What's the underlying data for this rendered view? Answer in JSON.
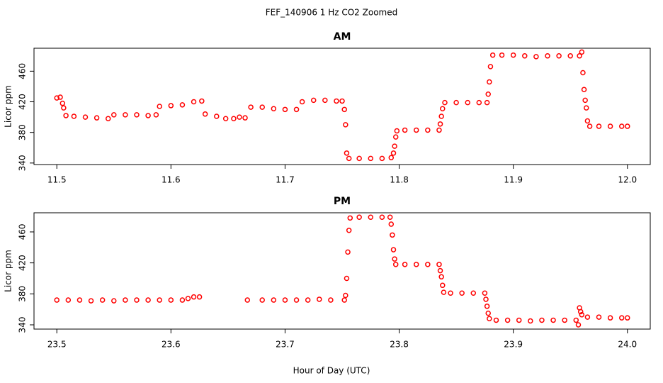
{
  "suptitle": "FEF_140906  1 Hz CO2 Zoomed",
  "xlabel": "Hour of Day (UTC)",
  "chart_data": [
    {
      "type": "scatter",
      "title": "AM",
      "ylabel": "Licor ppm",
      "color": "#ff0000",
      "xlim": [
        11.48,
        12.02
      ],
      "ylim": [
        338,
        490
      ],
      "xticks": [
        11.5,
        11.6,
        11.7,
        11.8,
        11.9,
        {
          "value": 12,
          "label": "12.0"
        }
      ],
      "yticks": [
        340,
        380,
        420,
        460
      ],
      "x": [
        11.5,
        11.503,
        11.505,
        11.506,
        11.508,
        11.515,
        11.525,
        11.535,
        11.545,
        11.55,
        11.56,
        11.57,
        11.58,
        11.587,
        11.59,
        11.6,
        11.61,
        11.62,
        11.627,
        11.63,
        11.64,
        11.648,
        11.655,
        11.66,
        11.665,
        11.67,
        11.68,
        11.69,
        11.7,
        11.71,
        11.715,
        11.725,
        11.735,
        11.745,
        11.75,
        11.752,
        11.753,
        11.754,
        11.756,
        11.765,
        11.775,
        11.785,
        11.793,
        11.795,
        11.796,
        11.797,
        11.798,
        11.805,
        11.815,
        11.825,
        11.835,
        11.836,
        11.837,
        11.838,
        11.84,
        11.85,
        11.86,
        11.87,
        11.877,
        11.878,
        11.879,
        11.88,
        11.882,
        11.89,
        11.9,
        11.91,
        11.92,
        11.93,
        11.94,
        11.95,
        11.958,
        11.96,
        11.961,
        11.962,
        11.963,
        11.964,
        11.965,
        11.967,
        11.975,
        11.985,
        11.995,
        12.0
      ],
      "values": [
        425,
        426,
        418,
        412,
        402,
        401,
        400,
        399,
        398,
        403,
        403,
        403,
        402,
        403,
        414,
        415,
        416,
        420,
        421,
        404,
        401,
        398,
        398,
        400,
        399,
        413,
        413,
        411,
        410,
        410,
        420,
        422,
        422,
        421,
        421,
        410,
        390,
        353,
        346,
        346,
        346,
        346,
        347,
        353,
        362,
        374,
        382,
        383,
        383,
        383,
        383,
        391,
        401,
        411,
        419,
        419,
        419,
        419,
        419,
        430,
        446,
        466,
        481,
        481,
        481,
        480,
        479,
        480,
        480,
        480,
        480,
        485,
        458,
        436,
        422,
        412,
        395,
        388,
        388,
        388,
        388,
        388
      ]
    },
    {
      "type": "scatter",
      "title": "PM",
      "ylabel": "Licor ppm",
      "color": "#ff0000",
      "xlim": [
        23.48,
        24.02
      ],
      "ylim": [
        334.5,
        484.7
      ],
      "xticks": [
        23.5,
        23.6,
        23.7,
        23.8,
        23.9,
        {
          "value": 24,
          "label": "24.0"
        }
      ],
      "yticks": [
        340,
        380,
        420,
        460
      ],
      "x": [
        23.5,
        23.51,
        23.52,
        23.53,
        23.54,
        23.55,
        23.56,
        23.57,
        23.58,
        23.59,
        23.6,
        23.61,
        23.615,
        23.62,
        23.625,
        23.667,
        23.68,
        23.69,
        23.7,
        23.71,
        23.72,
        23.73,
        23.74,
        23.752,
        23.753,
        23.754,
        23.755,
        23.756,
        23.757,
        23.765,
        23.775,
        23.785,
        23.792,
        23.793,
        23.794,
        23.795,
        23.796,
        23.797,
        23.805,
        23.815,
        23.825,
        23.835,
        23.836,
        23.837,
        23.838,
        23.839,
        23.845,
        23.855,
        23.865,
        23.875,
        23.876,
        23.877,
        23.878,
        23.879,
        23.885,
        23.895,
        23.905,
        23.915,
        23.925,
        23.935,
        23.945,
        23.955,
        23.957,
        23.958,
        23.959,
        23.96,
        23.965,
        23.975,
        23.985,
        23.995,
        24.0
      ],
      "values": [
        372,
        372,
        372,
        371,
        372,
        371,
        372,
        372,
        372,
        372,
        372,
        372,
        374,
        376,
        376,
        372,
        372,
        372,
        372,
        372,
        372,
        373,
        372,
        372,
        378,
        400,
        434,
        462,
        478,
        479,
        479,
        479,
        479,
        470,
        456,
        437,
        425,
        418,
        418,
        418,
        418,
        418,
        410,
        402,
        391,
        382,
        381,
        381,
        381,
        381,
        373,
        364,
        355,
        348,
        346,
        346,
        346,
        345,
        346,
        346,
        346,
        346,
        340,
        362,
        357,
        353,
        350,
        350,
        349,
        349,
        349
      ]
    }
  ]
}
